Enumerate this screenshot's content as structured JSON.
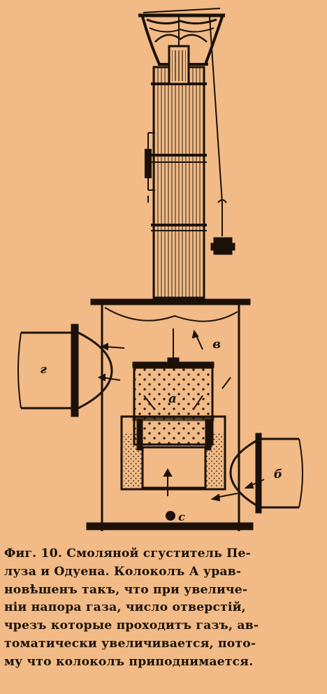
{
  "figure": {
    "labels": {
      "bell": "а",
      "chamber": "в",
      "outlet_pipe": "г",
      "inlet_pipe": "б",
      "drain": "с"
    }
  },
  "caption": {
    "lines": [
      "Фиг. 10. Смоляной сгуститель Пе-",
      "луза и Одуена. Колоколъ А урав-",
      "новѣшенъ такъ, что при увеличе-",
      "нiи напора газа, число отверстiй,",
      "чрезъ которые проходитъ газъ, ав-",
      "томатически увеличивается, пото-",
      "му что колоколъ приподнимается."
    ]
  }
}
